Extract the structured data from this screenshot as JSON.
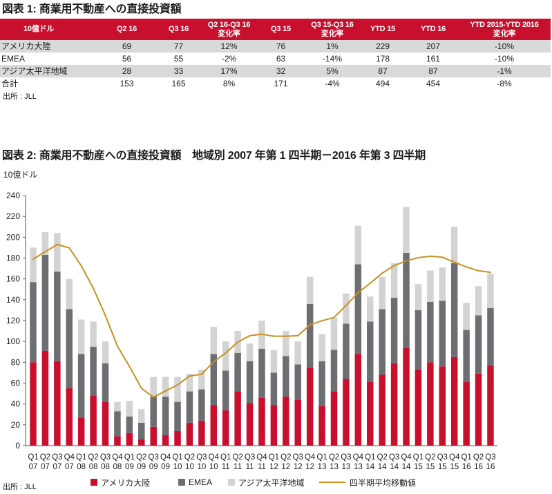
{
  "colors": {
    "header_red": "#C8102E",
    "row_shade": "#D9D9D9",
    "header_text": "#FFFFFF"
  },
  "table1": {
    "title": "図表 1: 商業用不動産への直接投資額",
    "headers": [
      "10億ドル",
      "Q2 16",
      "Q3 16",
      "Q2 16-Q3 16\n変化率",
      "Q3 15",
      "Q3 15-Q3 16\n変化率",
      "YTD 15",
      "YTD 16",
      "YTD 2015-YTD 2016\n変化率"
    ],
    "rows": [
      {
        "label": "アメリカ大陸",
        "values": [
          "69",
          "77",
          "12%",
          "76",
          "1%",
          "229",
          "207",
          "-10%"
        ]
      },
      {
        "label": "EMEA",
        "values": [
          "56",
          "55",
          "-2%",
          "63",
          "-14%",
          "178",
          "161",
          "-10%"
        ]
      },
      {
        "label": "アジア太平洋地域",
        "values": [
          "28",
          "33",
          "17%",
          "32",
          "5%",
          "87",
          "87",
          "-1%"
        ]
      },
      {
        "label": "合計",
        "values": [
          "153",
          "165",
          "8%",
          "171",
          "-4%",
          "494",
          "454",
          "-8%"
        ]
      }
    ],
    "source": "出所 : JLL"
  },
  "figure2": {
    "source": "出所 : JLL"
  },
  "chart_data": {
    "type": "bar",
    "stacked": true,
    "title": "図表 2: 商業用不動産への直接投資額　地域別 2007 年第 1 四半期－2016 年第 3 四半期",
    "ylabel": "10億ドル",
    "ylim": [
      0,
      240
    ],
    "yticks": [
      0,
      20,
      40,
      60,
      80,
      100,
      120,
      140,
      160,
      180,
      200,
      220,
      240
    ],
    "legend_position": "bottom",
    "categories": [
      {
        "quarter": "Q1",
        "year": "07"
      },
      {
        "quarter": "Q2",
        "year": "07"
      },
      {
        "quarter": "Q3",
        "year": "07"
      },
      {
        "quarter": "Q4",
        "year": "07"
      },
      {
        "quarter": "Q1",
        "year": "08"
      },
      {
        "quarter": "Q2",
        "year": "08"
      },
      {
        "quarter": "Q3",
        "year": "08"
      },
      {
        "quarter": "Q4",
        "year": "08"
      },
      {
        "quarter": "Q1",
        "year": "09"
      },
      {
        "quarter": "Q2",
        "year": "09"
      },
      {
        "quarter": "Q3",
        "year": "09"
      },
      {
        "quarter": "Q4",
        "year": "09"
      },
      {
        "quarter": "Q1",
        "year": "10"
      },
      {
        "quarter": "Q2",
        "year": "10"
      },
      {
        "quarter": "Q3",
        "year": "10"
      },
      {
        "quarter": "Q4",
        "year": "10"
      },
      {
        "quarter": "Q1",
        "year": "11"
      },
      {
        "quarter": "Q2",
        "year": "11"
      },
      {
        "quarter": "Q3",
        "year": "11"
      },
      {
        "quarter": "Q4",
        "year": "11"
      },
      {
        "quarter": "Q1",
        "year": "12"
      },
      {
        "quarter": "Q2",
        "year": "12"
      },
      {
        "quarter": "Q3",
        "year": "12"
      },
      {
        "quarter": "Q4",
        "year": "12"
      },
      {
        "quarter": "Q1",
        "year": "13"
      },
      {
        "quarter": "Q2",
        "year": "13"
      },
      {
        "quarter": "Q3",
        "year": "13"
      },
      {
        "quarter": "Q4",
        "year": "13"
      },
      {
        "quarter": "Q1",
        "year": "14"
      },
      {
        "quarter": "Q2",
        "year": "14"
      },
      {
        "quarter": "Q3",
        "year": "14"
      },
      {
        "quarter": "Q4",
        "year": "14"
      },
      {
        "quarter": "Q1",
        "year": "15"
      },
      {
        "quarter": "Q2",
        "year": "15"
      },
      {
        "quarter": "Q3",
        "year": "15"
      },
      {
        "quarter": "Q4",
        "year": "15"
      },
      {
        "quarter": "Q1",
        "year": "16"
      },
      {
        "quarter": "Q2",
        "year": "16"
      },
      {
        "quarter": "Q3",
        "year": "16"
      }
    ],
    "series": [
      {
        "name": "アメリカ大陸",
        "color": "#C8102E",
        "values": [
          80,
          91,
          81,
          55,
          27,
          48,
          42,
          9,
          12,
          6,
          18,
          10,
          14,
          22,
          24,
          39,
          34,
          52,
          41,
          46,
          39,
          47,
          44,
          75,
          38,
          52,
          64,
          88,
          61,
          68,
          79,
          94,
          73,
          80,
          76,
          85,
          61,
          69,
          77
        ]
      },
      {
        "name": "EMEA",
        "color": "#6D6E71",
        "values": [
          77,
          92,
          86,
          76,
          61,
          47,
          37,
          24,
          16,
          16,
          29,
          37,
          28,
          30,
          30,
          49,
          38,
          37,
          40,
          47,
          31,
          39,
          34,
          61,
          43,
          40,
          53,
          86,
          58,
          63,
          63,
          91,
          57,
          58,
          63,
          90,
          50,
          56,
          55
        ]
      },
      {
        "name": "アジア太平洋地域",
        "color": "#D3D3D3",
        "values": [
          33,
          22,
          37,
          29,
          33,
          24,
          21,
          9,
          15,
          13,
          19,
          19,
          24,
          17,
          19,
          26,
          28,
          21,
          17,
          27,
          22,
          24,
          22,
          26,
          26,
          31,
          29,
          37,
          24,
          31,
          33,
          44,
          25,
          30,
          32,
          35,
          26,
          28,
          33
        ]
      }
    ],
    "line_series": {
      "name": "四半期平均移動値",
      "color": "#C8901E",
      "values": [
        179,
        186,
        193,
        189.8,
        172.5,
        151,
        125,
        95.5,
        76,
        55,
        46.5,
        52.5,
        58.3,
        66.8,
        68.5,
        80.5,
        89,
        99.3,
        105.5,
        107,
        105,
        105,
        105.5,
        116,
        119.8,
        123,
        134.5,
        146.8,
        155.8,
        165.5,
        172.8,
        177.3,
        180.3,
        181.8,
        180.8,
        176,
        171.5,
        167.8,
        166.3
      ]
    }
  }
}
